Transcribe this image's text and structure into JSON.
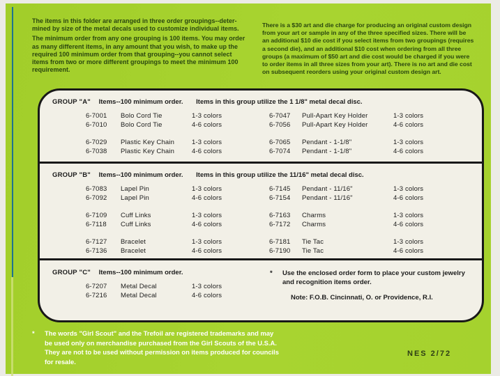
{
  "document": {
    "colors": {
      "background_green": "#a6d22e",
      "dark_green_text": "#2a470f",
      "panel_background": "#f2f0e7",
      "ink_black": "#1c1c1c",
      "white_text": "#ffffff",
      "teal_stripe": "#1d7390"
    },
    "intro_left": {
      "p1_lines": [
        "The items in this folder are arranged in three order groupings--deter-",
        "mined by size of the metal decals used to customize individual items."
      ],
      "p2_lines": [
        "The minimum order from any one grouping is 100 items. You may order",
        "as many different items, in any amount that you wish, to make up the",
        "required 100 minimum order from that grouping--you cannot select",
        "items from two or more different groupings to meet the minimum 100",
        "requirement."
      ]
    },
    "intro_right": {
      "lines": [
        "There is a $30 art and die charge for producing an original custom design",
        "from your art or sample in any of the three specified sizes. There will be",
        "an additional $10 die cost if you select items from two groupings (requires",
        "a second die), and an additional $10 cost when ordering from all three",
        "groups (a maximum of $50 art and die cost would be charged if you were",
        "to order items in all three sizes from your art). There is no art and die cost",
        "on subsequent reorders using your original custom design art."
      ]
    },
    "groups": [
      {
        "name": "GROUP \"A\"",
        "order_note": "Items--100 minimum order.",
        "size_note": "Items in this group utilize the 1 1/8\" metal decal disc.",
        "left": [
          {
            "num": "6-7001",
            "item": "Bolo Cord Tie",
            "colors": "1-3 colors"
          },
          {
            "num": "6-7010",
            "item": "Bolo Cord Tie",
            "colors": "4-6 colors"
          },
          {
            "num": "6-7029",
            "item": "Plastic Key Chain",
            "colors": "1-3 colors"
          },
          {
            "num": "6-7038",
            "item": "Plastic Key Chain",
            "colors": "4-6 colors"
          }
        ],
        "right": [
          {
            "num": "6-7047",
            "item": "Pull-Apart Key Holder",
            "colors": "1-3 colors"
          },
          {
            "num": "6-7056",
            "item": "Pull-Apart Key Holder",
            "colors": "4-6 colors"
          },
          {
            "num": "6-7065",
            "item": "Pendant - 1-1/8\"",
            "colors": "1-3 colors"
          },
          {
            "num": "6-7074",
            "item": "Pendant - 1-1/8\"",
            "colors": "4-6 colors"
          }
        ]
      },
      {
        "name": "GROUP \"B\"",
        "order_note": "Items--100 minimum order.",
        "size_note": "Items in this group utilize the 11/16\" metal decal disc.",
        "left": [
          {
            "num": "6-7083",
            "item": "Lapel Pin",
            "colors": "1-3 colors"
          },
          {
            "num": "6-7092",
            "item": "Lapel Pin",
            "colors": "4-6 colors"
          },
          {
            "num": "6-7109",
            "item": "Cuff Links",
            "colors": "1-3 colors"
          },
          {
            "num": "6-7118",
            "item": "Cuff Links",
            "colors": "4-6 colors"
          },
          {
            "num": "6-7127",
            "item": "Bracelet",
            "colors": "1-3 colors"
          },
          {
            "num": "6-7136",
            "item": "Bracelet",
            "colors": "4-6 colors"
          }
        ],
        "right": [
          {
            "num": "6-7145",
            "item": "Pendant - 11/16\"",
            "colors": "1-3 colors"
          },
          {
            "num": "6-7154",
            "item": "Pendant - 11/16\"",
            "colors": "4-6 colors"
          },
          {
            "num": "6-7163",
            "item": "Charms",
            "colors": "1-3 colors"
          },
          {
            "num": "6-7172",
            "item": "Charms",
            "colors": "4-6 colors"
          },
          {
            "num": "6-7181",
            "item": "Tie Tac",
            "colors": "1-3 colors"
          },
          {
            "num": "6-7190",
            "item": "Tie Tac",
            "colors": "4-6 colors"
          }
        ]
      },
      {
        "name": "GROUP \"C\"",
        "order_note": "Items--100 minimum order.",
        "size_note": "",
        "left": [
          {
            "num": "6-7207",
            "item": "Metal Decal",
            "colors": "1-3 colors"
          },
          {
            "num": "6-7216",
            "item": "Metal Decal",
            "colors": "4-6 colors"
          }
        ],
        "right": []
      }
    ],
    "order_form_note": {
      "asterisk": "*",
      "lines": [
        "Use the enclosed order form to place your custom jewelry",
        "and recognition items order."
      ],
      "fob": "Note:  F.O.B.  Cincinnati, O. or Providence, R.I."
    },
    "trademark_note": {
      "asterisk": "*",
      "lines": [
        "The words \"Girl Scout\" and the Trefoil are registered trademarks and may",
        "be used only on merchandise purchased from the Girl Scouts of the U.S.A.",
        "They are not to be used without permission on items produced for councils",
        "for resale."
      ]
    },
    "code": "NES 2/72"
  }
}
